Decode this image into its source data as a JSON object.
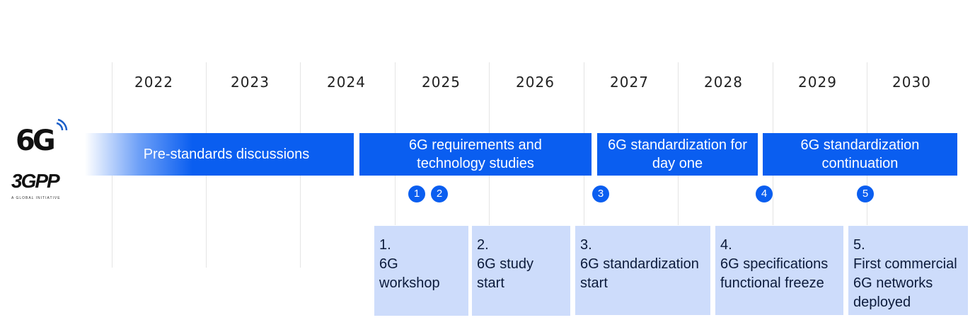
{
  "years": [
    "2022",
    "2023",
    "2024",
    "2025",
    "2026",
    "2027",
    "2028",
    "2029",
    "2030"
  ],
  "phases": [
    {
      "text": "Pre-standards discussions"
    },
    {
      "text": "6G requirements and technology studies",
      "lines": [
        "6G requirements and",
        "technology studies"
      ]
    },
    {
      "text": "6G standardization for day one",
      "lines": [
        "6G standardization for",
        "day one"
      ]
    },
    {
      "text": "6G standardization continuation",
      "lines": [
        "6G standardization",
        "continuation"
      ]
    }
  ],
  "markers": [
    "1",
    "2",
    "3",
    "4",
    "5"
  ],
  "milestones": [
    {
      "number": "1.",
      "lines": [
        "6G",
        "workshop"
      ]
    },
    {
      "number": "2.",
      "lines": [
        "6G study",
        "start"
      ]
    },
    {
      "number": "3.",
      "lines": [
        "6G standardization",
        "start"
      ]
    },
    {
      "number": "4.",
      "lines": [
        "6G specifications",
        "functional freeze"
      ]
    },
    {
      "number": "5.",
      "lines": [
        "First commercial",
        "6G networks",
        "deployed"
      ]
    }
  ],
  "logos": {
    "sixg": "6G",
    "threegpp": "3GPP",
    "threegpp_tagline": "A GLOBAL INITIATIVE"
  },
  "colors": {
    "phase_blue": "#0a5ef0",
    "card_fill": "#cddcfb"
  }
}
